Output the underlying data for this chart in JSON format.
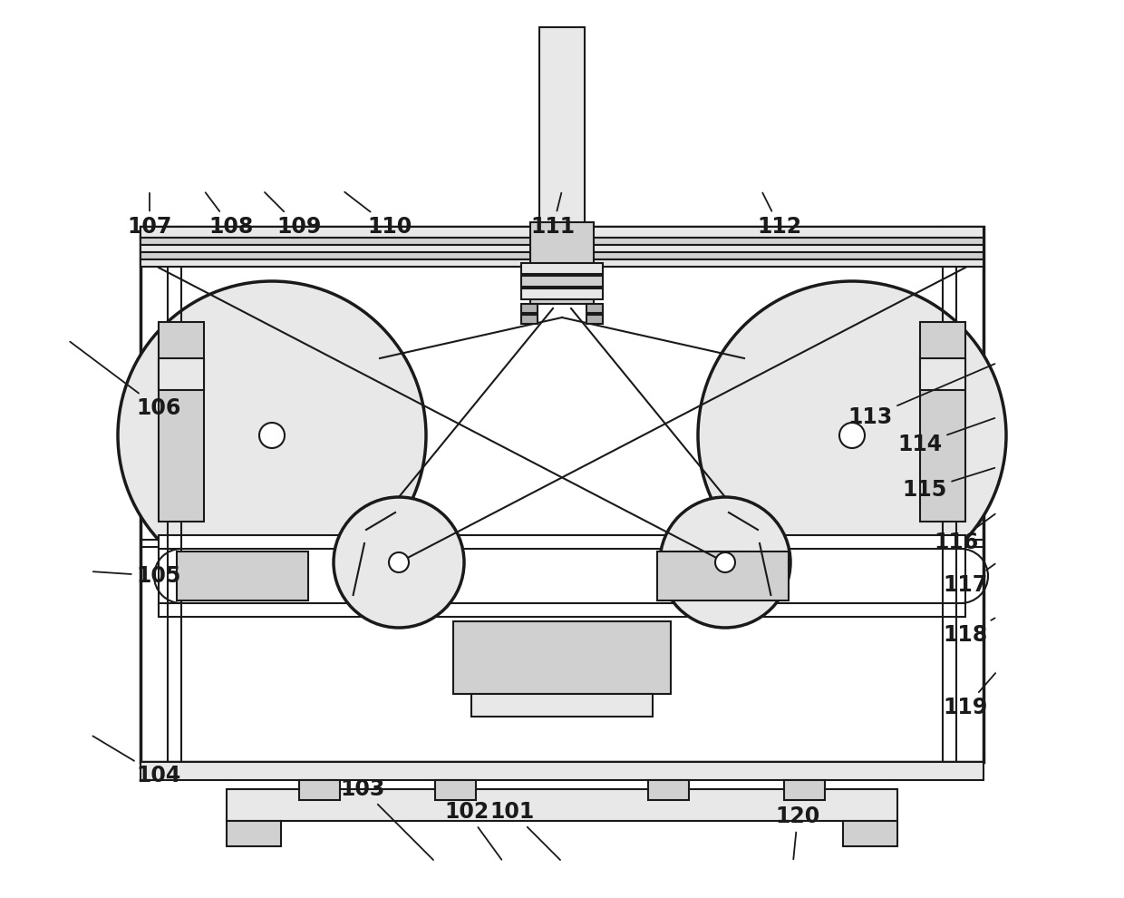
{
  "bg_color": "#ffffff",
  "line_color": "#1a1a1a",
  "lw": 1.5,
  "tlw": 2.5,
  "figsize": [
    12.4,
    9.9
  ],
  "dpi": 100,
  "gray_light": "#e8e8e8",
  "gray_mid": "#d0d0d0",
  "gray_dark": "#b0b0b0"
}
